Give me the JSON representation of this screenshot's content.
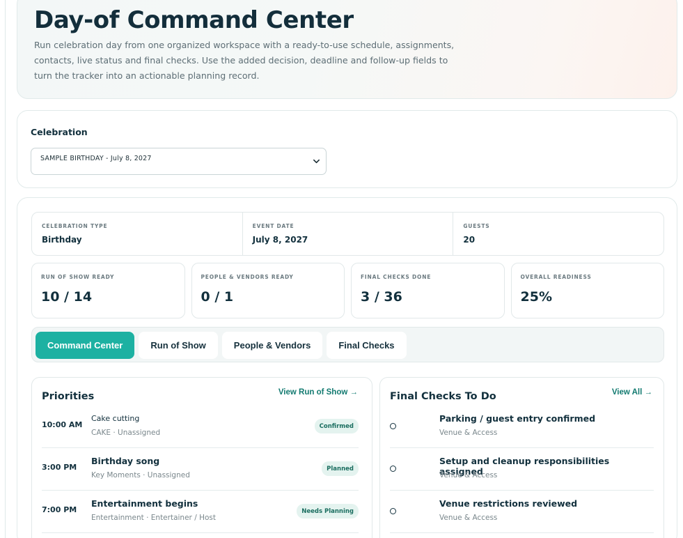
{
  "hero": {
    "title": "Day-of Command Center",
    "description": "Run celebration day from one organized workspace with a ready-to-use schedule, assignments, contacts, live status and final checks. Use the added decision, deadline and follow-up fields to turn the tracker into an actionable planning record."
  },
  "celebration": {
    "label": "Celebration",
    "selected": "SAMPLE BIRTHDAY - July 8, 2027"
  },
  "meta": [
    {
      "label": "CELEBRATION TYPE",
      "value": "Birthday"
    },
    {
      "label": "EVENT DATE",
      "value": "July 8, 2027"
    },
    {
      "label": "GUESTS",
      "value": "20"
    }
  ],
  "stats": [
    {
      "label": "RUN OF SHOW READY",
      "value": "10 / 14"
    },
    {
      "label": "PEOPLE & VENDORS READY",
      "value": "0 / 1"
    },
    {
      "label": "FINAL CHECKS DONE",
      "value": "3 / 36"
    },
    {
      "label": "OVERALL READINESS",
      "value": "25%"
    }
  ],
  "tabs": [
    {
      "label": "Command Center",
      "active": true
    },
    {
      "label": "Run of Show",
      "active": false
    },
    {
      "label": "People & Vendors",
      "active": false
    },
    {
      "label": "Final Checks",
      "active": false
    }
  ],
  "priorities": {
    "title": "Priorities",
    "link": "View Run of Show →",
    "items": [
      {
        "time": "10:00 AM",
        "title": "Cake cutting",
        "sub": "CAKE · Unassigned",
        "status": "Confirmed"
      },
      {
        "time": "3:00 PM",
        "title": "Birthday song",
        "sub": "Key Moments · Unassigned",
        "status": "Planned"
      },
      {
        "time": "7:00 PM",
        "title": "Entertainment begins",
        "sub": "Entertainment · Entertainer / Host",
        "status": "Needs Planning"
      }
    ]
  },
  "final_checks": {
    "title": "Final Checks To Do",
    "link": "View All →",
    "items": [
      {
        "title": "Parking / guest entry confirmed",
        "sub": "Venue & Access"
      },
      {
        "title": "Setup and cleanup responsibilities assigned",
        "sub": "Venue & Access"
      },
      {
        "title": "Venue restrictions reviewed",
        "sub": "Venue & Access"
      }
    ]
  },
  "colors": {
    "accent": "#1db1a2",
    "link": "#127a70",
    "text": "#12303d"
  }
}
